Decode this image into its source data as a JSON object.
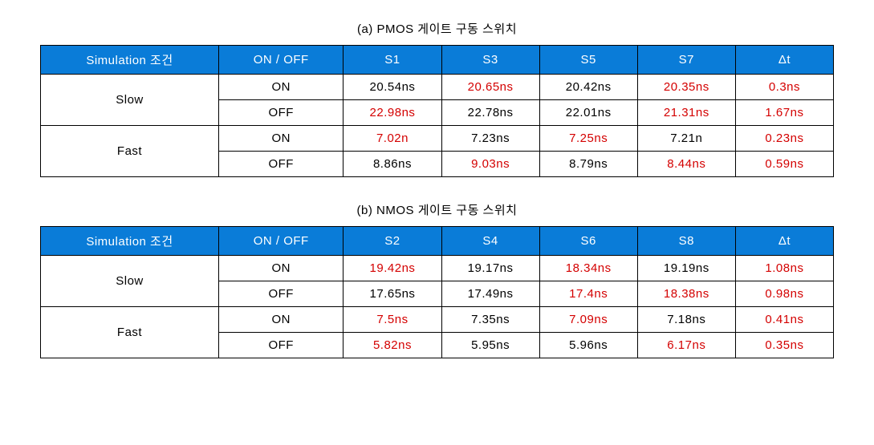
{
  "table_a": {
    "caption": "(a) PMOS 게이트 구동 스위치",
    "headers": [
      "Simulation 조건",
      "ON / OFF",
      "S1",
      "S3",
      "S5",
      "S7",
      "Δt"
    ],
    "rows": [
      {
        "condition": "Slow",
        "subrows": [
          {
            "onoff": "ON",
            "cells": [
              {
                "v": "20.54ns",
                "red": false
              },
              {
                "v": "20.65ns",
                "red": true
              },
              {
                "v": "20.42ns",
                "red": false
              },
              {
                "v": "20.35ns",
                "red": true
              },
              {
                "v": "0.3ns",
                "red": true
              }
            ]
          },
          {
            "onoff": "OFF",
            "cells": [
              {
                "v": "22.98ns",
                "red": true
              },
              {
                "v": "22.78ns",
                "red": false
              },
              {
                "v": "22.01ns",
                "red": false
              },
              {
                "v": "21.31ns",
                "red": true
              },
              {
                "v": "1.67ns",
                "red": true
              }
            ]
          }
        ]
      },
      {
        "condition": "Fast",
        "subrows": [
          {
            "onoff": "ON",
            "cells": [
              {
                "v": "7.02n",
                "red": true
              },
              {
                "v": "7.23ns",
                "red": false
              },
              {
                "v": "7.25ns",
                "red": true
              },
              {
                "v": "7.21n",
                "red": false
              },
              {
                "v": "0.23ns",
                "red": true
              }
            ]
          },
          {
            "onoff": "OFF",
            "cells": [
              {
                "v": "8.86ns",
                "red": false
              },
              {
                "v": "9.03ns",
                "red": true
              },
              {
                "v": "8.79ns",
                "red": false
              },
              {
                "v": "8.44ns",
                "red": true
              },
              {
                "v": "0.59ns",
                "red": true
              }
            ]
          }
        ]
      }
    ]
  },
  "table_b": {
    "caption": "(b) NMOS 게이트 구동 스위치",
    "headers": [
      "Simulation 조건",
      "ON / OFF",
      "S2",
      "S4",
      "S6",
      "S8",
      "Δt"
    ],
    "rows": [
      {
        "condition": "Slow",
        "subrows": [
          {
            "onoff": "ON",
            "cells": [
              {
                "v": "19.42ns",
                "red": true
              },
              {
                "v": "19.17ns",
                "red": false
              },
              {
                "v": "18.34ns",
                "red": true
              },
              {
                "v": "19.19ns",
                "red": false
              },
              {
                "v": "1.08ns",
                "red": true
              }
            ]
          },
          {
            "onoff": "OFF",
            "cells": [
              {
                "v": "17.65ns",
                "red": false
              },
              {
                "v": "17.49ns",
                "red": false
              },
              {
                "v": "17.4ns",
                "red": true
              },
              {
                "v": "18.38ns",
                "red": true
              },
              {
                "v": "0.98ns",
                "red": true
              }
            ]
          }
        ]
      },
      {
        "condition": "Fast",
        "subrows": [
          {
            "onoff": "ON",
            "cells": [
              {
                "v": "7.5ns",
                "red": true
              },
              {
                "v": "7.35ns",
                "red": false
              },
              {
                "v": "7.09ns",
                "red": true
              },
              {
                "v": "7.18ns",
                "red": false
              },
              {
                "v": "0.41ns",
                "red": true
              }
            ]
          },
          {
            "onoff": "OFF",
            "cells": [
              {
                "v": "5.82ns",
                "red": true
              },
              {
                "v": "5.95ns",
                "red": false
              },
              {
                "v": "5.96ns",
                "red": false
              },
              {
                "v": "6.17ns",
                "red": true
              },
              {
                "v": "0.35ns",
                "red": true
              }
            ]
          }
        ]
      }
    ]
  }
}
